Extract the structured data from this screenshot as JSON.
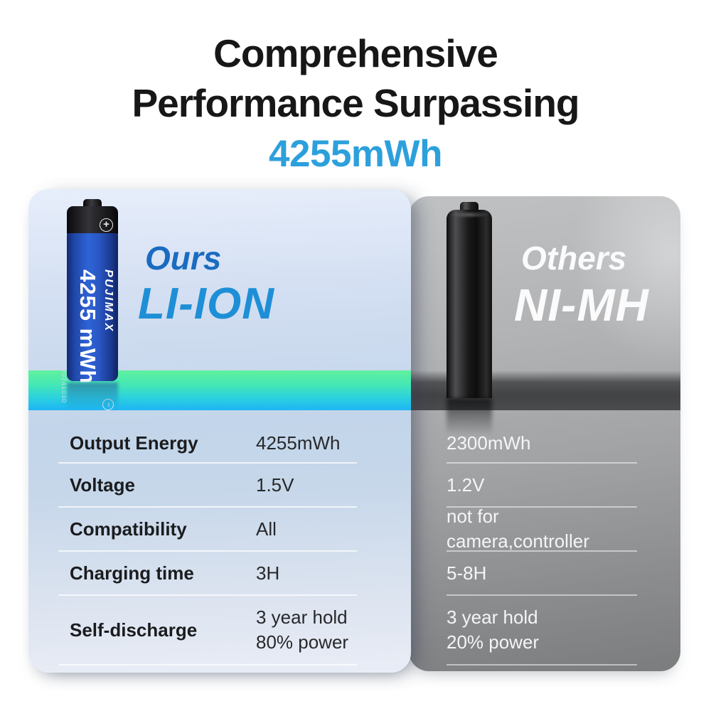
{
  "header": {
    "title_line1": "Comprehensive",
    "title_line2": "Performance Surpassing",
    "highlight": "4255mWh"
  },
  "ours": {
    "tag": "Ours",
    "technology": "LI-ION",
    "battery": {
      "brand": "PUJIMAX",
      "capacity": "4255 mWh",
      "date_code": "20241030",
      "plus_terminal_glyph": "+",
      "minus_terminal_glyph": "−"
    }
  },
  "others": {
    "tag": "Others",
    "technology": "NI-MH"
  },
  "table": {
    "rows": [
      {
        "label": "Output Energy",
        "ours": "4255mWh",
        "others": "2300mWh"
      },
      {
        "label": "Voltage",
        "ours": "1.5V",
        "others": "1.2V"
      },
      {
        "label": "Compatibility",
        "ours": "All",
        "others": "not for camera,controller"
      },
      {
        "label": "Charging time",
        "ours": "3H",
        "others": "5-8H"
      },
      {
        "label": "Self-discharge",
        "ours": "3 year hold\n80% power",
        "others": "3 year hold\n20% power"
      }
    ]
  },
  "colors": {
    "highlight_blue": "#2da0dc",
    "ours_tag_blue": "#1a6cc0",
    "ours_tech_blue": "#1e8fd6",
    "band_green_top": "#60f19e",
    "band_blue_bottom": "#1eb5f5",
    "dark_band": "#4a4b4d",
    "panel_left_bg": "#c3d5ea",
    "panel_right_bg": "#a2a3a5",
    "battery_blue": "#2e63d6"
  }
}
